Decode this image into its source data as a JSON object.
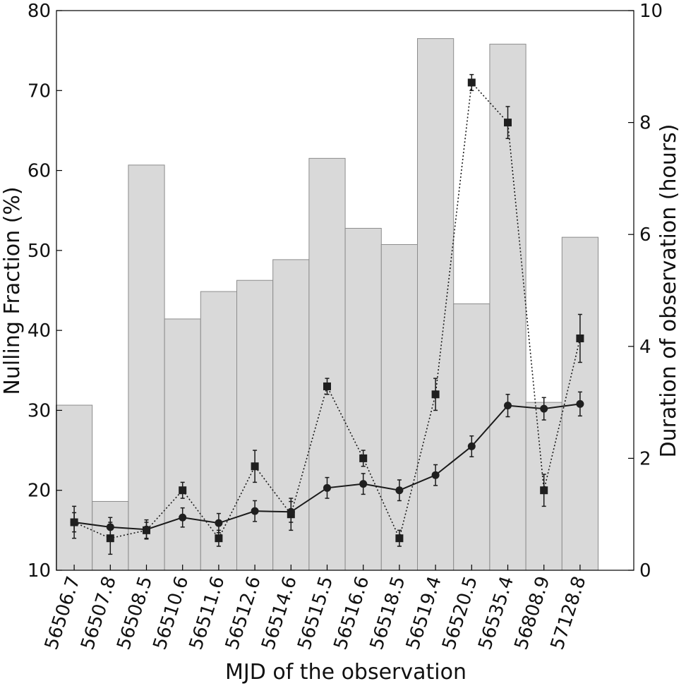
{
  "chart_data": {
    "type": "bar",
    "xlabel": "MJD of the observation",
    "ylabel_left": "Nulling Fraction (%)",
    "ylabel_right": "Duration of observation (hours)",
    "ylim_left": [
      10,
      80
    ],
    "ylim_right": [
      0,
      10
    ],
    "yticks_left": [
      "10",
      "20",
      "30",
      "40",
      "50",
      "60",
      "70",
      "80"
    ],
    "yticks_right": [
      "0",
      "2",
      "4",
      "6",
      "8",
      "10"
    ],
    "grid": false,
    "categories": [
      "56506.7",
      "56507.8",
      "56508.5",
      "56510.6",
      "56511.6",
      "56512.6",
      "56514.6",
      "56515.5",
      "56516.6",
      "56518.5",
      "56519.4",
      "56520.5",
      "56535.4",
      "56808.9",
      "57128.8"
    ],
    "bar_color": "#d9d9d9",
    "series": [
      {
        "axis": "right",
        "kind": "bar",
        "values": [
          2.95,
          1.23,
          7.24,
          4.49,
          4.98,
          5.18,
          5.55,
          7.36,
          6.11,
          5.82,
          9.5,
          4.76,
          9.4,
          3.0,
          5.95
        ]
      },
      {
        "axis": "left",
        "kind": "line",
        "marker": "square",
        "linestyle": "dotted",
        "values": [
          16,
          14,
          15,
          20,
          14,
          23,
          17,
          33,
          24,
          14,
          32,
          71,
          66,
          20,
          39
        ],
        "errors": [
          2,
          2,
          1,
          1,
          1,
          2,
          2,
          1,
          1,
          1,
          2,
          1,
          2,
          2,
          3
        ]
      },
      {
        "axis": "left",
        "kind": "line",
        "marker": "circle",
        "linestyle": "solid",
        "values": [
          16.0,
          15.4,
          15.1,
          16.6,
          15.9,
          17.4,
          17.3,
          20.3,
          20.8,
          20.0,
          21.9,
          25.5,
          30.6,
          30.2,
          30.8
        ],
        "errors": [
          1.2,
          1.2,
          1.2,
          1.2,
          1.2,
          1.3,
          1.3,
          1.3,
          1.3,
          1.3,
          1.3,
          1.3,
          1.4,
          1.4,
          1.5
        ]
      }
    ]
  }
}
